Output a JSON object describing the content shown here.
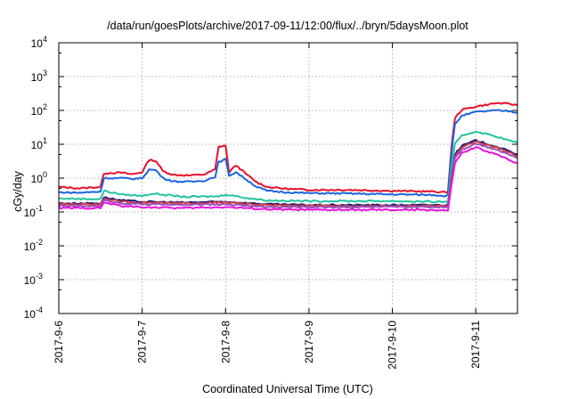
{
  "chart_data": {
    "type": "line",
    "title": "/data/run/goesPlots/archive/2017-09-11/12:00/flux/../bryn/5daysMoon.plot",
    "xlabel": "Coordinated Universal Time (UTC)",
    "ylabel": "cGy/day",
    "y_scale": "log",
    "ylim": [
      0.0001,
      10000
    ],
    "xlim": [
      "2017-09-06T00:00",
      "2017-09-11T12:00"
    ],
    "grid": true,
    "x_ticks": [
      {
        "value": "2017-09-06",
        "label": "2017-9-6"
      },
      {
        "value": "2017-09-07",
        "label": "2017-9-7"
      },
      {
        "value": "2017-09-08",
        "label": "2017-9-8"
      },
      {
        "value": "2017-09-09",
        "label": "2017-9-9"
      },
      {
        "value": "2017-09-10",
        "label": "2017-9-10"
      },
      {
        "value": "2017-09-11",
        "label": "2017-9-11"
      }
    ],
    "y_ticks": [
      {
        "value": 0.0001,
        "base": "10",
        "exp": "-4"
      },
      {
        "value": 0.001,
        "base": "10",
        "exp": "-3"
      },
      {
        "value": 0.01,
        "base": "10",
        "exp": "-2"
      },
      {
        "value": 0.1,
        "base": "10",
        "exp": "-1"
      },
      {
        "value": 1,
        "base": "10",
        "exp": "0"
      },
      {
        "value": 10,
        "base": "10",
        "exp": "1"
      },
      {
        "value": 100,
        "base": "10",
        "exp": "2"
      },
      {
        "value": 1000,
        "base": "10",
        "exp": "3"
      },
      {
        "value": 10000,
        "base": "10",
        "exp": "4"
      }
    ],
    "series": [
      {
        "color": "#e8102a",
        "points": [
          [
            "2017-09-06T00:00",
            0.55
          ],
          [
            "2017-09-06T06:00",
            0.5
          ],
          [
            "2017-09-06T12:00",
            0.55
          ],
          [
            "2017-09-06T13:00",
            1.4
          ],
          [
            "2017-09-06T18:00",
            1.45
          ],
          [
            "2017-09-06T21:00",
            1.3
          ],
          [
            "2017-09-07T00:00",
            1.5
          ],
          [
            "2017-09-07T02:00",
            3.5
          ],
          [
            "2017-09-07T04:00",
            3.2
          ],
          [
            "2017-09-07T06:00",
            1.6
          ],
          [
            "2017-09-07T09:00",
            1.25
          ],
          [
            "2017-09-07T14:00",
            1.2
          ],
          [
            "2017-09-07T18:00",
            1.3
          ],
          [
            "2017-09-07T21:00",
            1.8
          ],
          [
            "2017-09-07T22:00",
            8.5
          ],
          [
            "2017-09-08T00:00",
            9.2
          ],
          [
            "2017-09-08T01:00",
            1.5
          ],
          [
            "2017-09-08T03:00",
            2.4
          ],
          [
            "2017-09-08T06:00",
            1.3
          ],
          [
            "2017-09-08T09:00",
            0.75
          ],
          [
            "2017-09-08T12:00",
            0.55
          ],
          [
            "2017-09-08T18:00",
            0.48
          ],
          [
            "2017-09-09T00:00",
            0.45
          ],
          [
            "2017-09-09T12:00",
            0.45
          ],
          [
            "2017-09-10T00:00",
            0.42
          ],
          [
            "2017-09-10T12:00",
            0.4
          ],
          [
            "2017-09-10T15:00",
            0.38
          ],
          [
            "2017-09-10T16:00",
            0.4
          ],
          [
            "2017-09-10T17:00",
            8
          ],
          [
            "2017-09-10T18:00",
            60
          ],
          [
            "2017-09-10T20:00",
            105
          ],
          [
            "2017-09-11T00:00",
            130
          ],
          [
            "2017-09-11T06:00",
            165
          ],
          [
            "2017-09-11T10:00",
            155
          ],
          [
            "2017-09-11T12:00",
            140
          ]
        ]
      },
      {
        "color": "#1a64e0",
        "points": [
          [
            "2017-09-06T00:00",
            0.38
          ],
          [
            "2017-09-06T06:00",
            0.37
          ],
          [
            "2017-09-06T12:00",
            0.4
          ],
          [
            "2017-09-06T13:00",
            1.0
          ],
          [
            "2017-09-06T18:00",
            1.0
          ],
          [
            "2017-09-06T21:00",
            0.95
          ],
          [
            "2017-09-07T00:00",
            1.0
          ],
          [
            "2017-09-07T02:00",
            1.8
          ],
          [
            "2017-09-07T04:00",
            1.7
          ],
          [
            "2017-09-07T06:00",
            1.0
          ],
          [
            "2017-09-07T09:00",
            0.8
          ],
          [
            "2017-09-07T14:00",
            0.78
          ],
          [
            "2017-09-07T18:00",
            0.85
          ],
          [
            "2017-09-07T21:00",
            1.1
          ],
          [
            "2017-09-07T22:00",
            3.0
          ],
          [
            "2017-09-08T00:00",
            3.6
          ],
          [
            "2017-09-08T01:00",
            1.2
          ],
          [
            "2017-09-08T03:00",
            1.5
          ],
          [
            "2017-09-08T06:00",
            0.9
          ],
          [
            "2017-09-08T09:00",
            0.55
          ],
          [
            "2017-09-08T12:00",
            0.42
          ],
          [
            "2017-09-08T18:00",
            0.38
          ],
          [
            "2017-09-09T00:00",
            0.36
          ],
          [
            "2017-09-09T12:00",
            0.35
          ],
          [
            "2017-09-10T00:00",
            0.33
          ],
          [
            "2017-09-10T12:00",
            0.32
          ],
          [
            "2017-09-10T15:00",
            0.3
          ],
          [
            "2017-09-10T16:00",
            0.32
          ],
          [
            "2017-09-10T17:00",
            5
          ],
          [
            "2017-09-10T18:00",
            40
          ],
          [
            "2017-09-10T20:00",
            70
          ],
          [
            "2017-09-11T00:00",
            90
          ],
          [
            "2017-09-11T06:00",
            100
          ],
          [
            "2017-09-11T10:00",
            95
          ],
          [
            "2017-09-11T12:00",
            85
          ]
        ]
      },
      {
        "color": "#20c4a0",
        "points": [
          [
            "2017-09-06T00:00",
            0.25
          ],
          [
            "2017-09-06T12:00",
            0.24
          ],
          [
            "2017-09-06T13:00",
            0.42
          ],
          [
            "2017-09-06T18:00",
            0.33
          ],
          [
            "2017-09-07T00:00",
            0.3
          ],
          [
            "2017-09-07T03:00",
            0.35
          ],
          [
            "2017-09-07T12:00",
            0.28
          ],
          [
            "2017-09-07T22:00",
            0.29
          ],
          [
            "2017-09-08T00:00",
            0.33
          ],
          [
            "2017-09-08T06:00",
            0.26
          ],
          [
            "2017-09-08T12:00",
            0.22
          ],
          [
            "2017-09-09T00:00",
            0.21
          ],
          [
            "2017-09-09T12:00",
            0.21
          ],
          [
            "2017-09-10T00:00",
            0.21
          ],
          [
            "2017-09-10T12:00",
            0.2
          ],
          [
            "2017-09-10T16:00",
            0.2
          ],
          [
            "2017-09-10T17:00",
            2
          ],
          [
            "2017-09-10T18:00",
            10
          ],
          [
            "2017-09-10T20:00",
            18
          ],
          [
            "2017-09-11T00:00",
            24
          ],
          [
            "2017-09-11T06:00",
            17
          ],
          [
            "2017-09-11T10:00",
            12.5
          ],
          [
            "2017-09-11T12:00",
            11
          ]
        ]
      },
      {
        "color": "#1a1a80",
        "points": [
          [
            "2017-09-06T00:00",
            0.18
          ],
          [
            "2017-09-06T12:00",
            0.18
          ],
          [
            "2017-09-06T13:00",
            0.27
          ],
          [
            "2017-09-06T18:00",
            0.22
          ],
          [
            "2017-09-07T00:00",
            0.2
          ],
          [
            "2017-09-07T12:00",
            0.19
          ],
          [
            "2017-09-08T00:00",
            0.2
          ],
          [
            "2017-09-08T12:00",
            0.17
          ],
          [
            "2017-09-09T00:00",
            0.16
          ],
          [
            "2017-09-09T12:00",
            0.16
          ],
          [
            "2017-09-10T00:00",
            0.16
          ],
          [
            "2017-09-10T12:00",
            0.16
          ],
          [
            "2017-09-10T16:00",
            0.16
          ],
          [
            "2017-09-10T17:00",
            1
          ],
          [
            "2017-09-10T18:00",
            5
          ],
          [
            "2017-09-10T20:00",
            9
          ],
          [
            "2017-09-11T00:00",
            13
          ],
          [
            "2017-09-11T06:00",
            8.5
          ],
          [
            "2017-09-11T10:00",
            6
          ],
          [
            "2017-09-11T12:00",
            5
          ]
        ]
      },
      {
        "color": "#d04040",
        "points": [
          [
            "2017-09-06T00:00",
            0.17
          ],
          [
            "2017-09-06T12:00",
            0.17
          ],
          [
            "2017-09-06T13:00",
            0.25
          ],
          [
            "2017-09-06T18:00",
            0.2
          ],
          [
            "2017-09-07T00:00",
            0.19
          ],
          [
            "2017-09-07T12:00",
            0.18
          ],
          [
            "2017-09-08T00:00",
            0.19
          ],
          [
            "2017-09-08T12:00",
            0.16
          ],
          [
            "2017-09-09T00:00",
            0.15
          ],
          [
            "2017-09-09T12:00",
            0.15
          ],
          [
            "2017-09-10T00:00",
            0.15
          ],
          [
            "2017-09-10T12:00",
            0.15
          ],
          [
            "2017-09-10T16:00",
            0.15
          ],
          [
            "2017-09-10T17:00",
            0.9
          ],
          [
            "2017-09-10T18:00",
            4.5
          ],
          [
            "2017-09-10T20:00",
            8
          ],
          [
            "2017-09-11T00:00",
            12
          ],
          [
            "2017-09-11T06:00",
            8
          ],
          [
            "2017-09-11T10:00",
            5.5
          ],
          [
            "2017-09-11T12:00",
            4.5
          ]
        ]
      },
      {
        "color": "#9a50c0",
        "points": [
          [
            "2017-09-06T00:00",
            0.15
          ],
          [
            "2017-09-06T12:00",
            0.15
          ],
          [
            "2017-09-06T13:00",
            0.22
          ],
          [
            "2017-09-06T18:00",
            0.18
          ],
          [
            "2017-09-07T00:00",
            0.17
          ],
          [
            "2017-09-07T12:00",
            0.16
          ],
          [
            "2017-09-08T00:00",
            0.17
          ],
          [
            "2017-09-08T12:00",
            0.14
          ],
          [
            "2017-09-09T00:00",
            0.14
          ],
          [
            "2017-09-09T12:00",
            0.14
          ],
          [
            "2017-09-10T00:00",
            0.14
          ],
          [
            "2017-09-10T12:00",
            0.14
          ],
          [
            "2017-09-10T16:00",
            0.14
          ],
          [
            "2017-09-10T17:00",
            0.8
          ],
          [
            "2017-09-10T18:00",
            4
          ],
          [
            "2017-09-10T20:00",
            7
          ],
          [
            "2017-09-11T00:00",
            10.5
          ],
          [
            "2017-09-11T06:00",
            7
          ],
          [
            "2017-09-11T10:00",
            4.8
          ],
          [
            "2017-09-11T12:00",
            4
          ]
        ]
      },
      {
        "color": "#ee10dd",
        "points": [
          [
            "2017-09-06T00:00",
            0.13
          ],
          [
            "2017-09-06T12:00",
            0.13
          ],
          [
            "2017-09-06T13:00",
            0.19
          ],
          [
            "2017-09-06T18:00",
            0.15
          ],
          [
            "2017-09-07T00:00",
            0.14
          ],
          [
            "2017-09-07T12:00",
            0.13
          ],
          [
            "2017-09-08T00:00",
            0.14
          ],
          [
            "2017-09-08T12:00",
            0.12
          ],
          [
            "2017-09-09T00:00",
            0.115
          ],
          [
            "2017-09-09T12:00",
            0.115
          ],
          [
            "2017-09-10T00:00",
            0.115
          ],
          [
            "2017-09-10T12:00",
            0.115
          ],
          [
            "2017-09-10T16:00",
            0.11
          ],
          [
            "2017-09-10T17:00",
            0.6
          ],
          [
            "2017-09-10T18:00",
            2.8
          ],
          [
            "2017-09-10T20:00",
            5.5
          ],
          [
            "2017-09-11T00:00",
            8
          ],
          [
            "2017-09-11T06:00",
            5
          ],
          [
            "2017-09-11T10:00",
            3.3
          ],
          [
            "2017-09-11T12:00",
            2.8
          ]
        ]
      }
    ]
  }
}
